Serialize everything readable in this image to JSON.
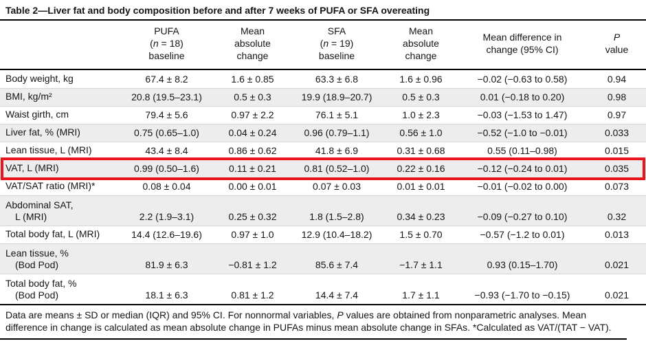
{
  "colors": {
    "highlight_red": "#e8151c",
    "row_shade": "#ededed",
    "rule_black": "#000000"
  },
  "table": {
    "title": "Table 2—Liver fat and body composition before and after 7 weeks of PUFA or SFA overeating",
    "header": [
      {
        "line1": "PUFA",
        "n_pre": "(",
        "n_italic": "n",
        "n_post": " = 18)",
        "line3": "baseline"
      },
      {
        "line1": "Mean",
        "line2": "absolute",
        "line3": "change"
      },
      {
        "line1": "SFA",
        "n_pre": "(",
        "n_italic": "n",
        "n_post": " = 19)",
        "line3": "baseline"
      },
      {
        "line1": "Mean",
        "line2": "absolute",
        "line3": "change"
      },
      {
        "line1": "Mean difference in",
        "line2": "change (95% CI)"
      },
      {
        "line1_italic": "P",
        "line2": "value"
      }
    ],
    "rows": [
      {
        "label": "Body weight, kg",
        "values": [
          "67.4 ± 8.2",
          "1.6 ± 0.85",
          "63.3 ± 6.8",
          "1.6 ± 0.96",
          "−0.02 (−0.63 to 0.58)",
          "0.94"
        ]
      },
      {
        "label": "BMI, kg/m²",
        "values": [
          "20.8 (19.5–23.1)",
          "0.5 ± 0.3",
          "19.9 (18.9–20.7)",
          "0.5 ± 0.3",
          "0.01 (−0.18 to 0.20)",
          "0.98"
        ]
      },
      {
        "label": "Waist girth, cm",
        "values": [
          "79.4 ± 5.6",
          "0.97 ± 2.2",
          "76.1 ± 5.1",
          "1.0 ± 2.3",
          "−0.03 (−1.53 to 1.47)",
          "0.97"
        ]
      },
      {
        "label": "Liver fat, % (MRI)",
        "values": [
          "0.75 (0.65–1.0)",
          "0.04 ± 0.24",
          "0.96 (0.79–1.1)",
          "0.56 ± 1.0",
          "−0.52 (−1.0 to −0.01)",
          "0.033"
        ]
      },
      {
        "label": "Lean tissue, L (MRI)",
        "values": [
          "43.4 ± 8.4",
          "0.86 ± 0.62",
          "41.8 ± 6.9",
          "0.31 ± 0.68",
          "0.55 (0.11–0.98)",
          "0.015"
        ]
      },
      {
        "label": "VAT, L (MRI)",
        "highlighted": true,
        "values": [
          "0.99 (0.50–1.6)",
          "0.11 ± 0.21",
          "0.81 (0.52–1.0)",
          "0.22 ± 0.16",
          "−0.12 (−0.24 to 0.01)",
          "0.035"
        ]
      },
      {
        "label": "VAT/SAT ratio (MRI)*",
        "values": [
          "0.08 ± 0.04",
          "0.00 ± 0.01",
          "0.07 ± 0.03",
          "0.01 ± 0.01",
          "−0.01 (−0.02 to 0.00)",
          "0.073"
        ]
      },
      {
        "label": "Abdominal SAT,",
        "label2": "L (MRI)",
        "values": [
          "2.2 (1.9–3.1)",
          "0.25 ± 0.32",
          "1.8 (1.5–2.8)",
          "0.34 ± 0.23",
          "−0.09 (−0.27 to 0.10)",
          "0.32"
        ]
      },
      {
        "label": "Total body fat, L (MRI)",
        "values": [
          "14.4 (12.6–19.6)",
          "0.97 ± 1.0",
          "12.9 (10.4–18.2)",
          "1.5 ± 0.70",
          "−0.57 (−1.2 to 0.01)",
          "0.013"
        ]
      },
      {
        "label": "Lean tissue, %",
        "label2": "(Bod Pod)",
        "values": [
          "81.9 ± 6.3",
          "−0.81 ± 1.2",
          "85.6 ± 7.4",
          "−1.7 ± 1.1",
          "0.93 (0.15–1.70)",
          "0.021"
        ]
      },
      {
        "label": "Total body fat, %",
        "label2": "(Bod Pod)",
        "values": [
          "18.1 ± 6.3",
          "0.81 ± 1.2",
          "14.4 ± 7.4",
          "1.7 ± 1.1",
          "−0.93 (−1.70 to −0.15)",
          "0.021"
        ]
      }
    ]
  },
  "footnote": {
    "part1": "Data are means ± SD or median (IQR) and 95% CI. For nonnormal variables, ",
    "p_italic": "P",
    "part2": " values are obtained from nonparametric analyses. Mean difference in change is calculated as mean absolute change in PUFAs minus mean absolute change in SFAs. *Calculated as VAT/(TAT − VAT)."
  }
}
